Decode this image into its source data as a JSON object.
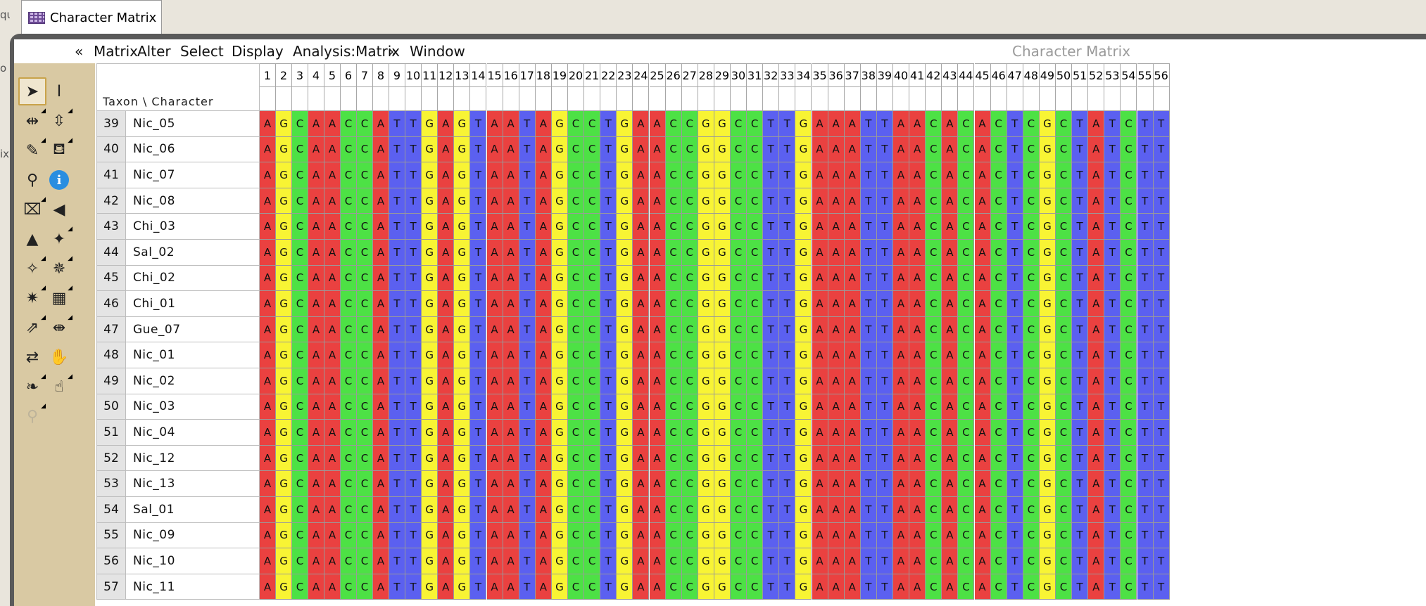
{
  "window": {
    "tab_label": "Character Matrix",
    "left_strip_fragments": [
      "qu",
      "o",
      "ix"
    ]
  },
  "menubar": {
    "items": [
      "«",
      "Matrix",
      "Alter",
      "Select",
      "Display",
      "Analysis:Matrix",
      "»",
      "Window"
    ],
    "right_title": "Character Matrix"
  },
  "tools": [
    {
      "name": "arrow-icon",
      "glyph": "➤",
      "selected": true,
      "menu": false
    },
    {
      "name": "ibeam-icon",
      "glyph": "I",
      "selected": false,
      "menu": false
    },
    {
      "name": "column-expand-icon",
      "glyph": "⇹",
      "selected": false,
      "menu": true
    },
    {
      "name": "row-expand-icon",
      "glyph": "⇳",
      "selected": false,
      "menu": true
    },
    {
      "name": "pencil-icon",
      "glyph": "✎",
      "selected": false,
      "menu": true
    },
    {
      "name": "paint-bucket-icon",
      "glyph": "⛾",
      "selected": false,
      "menu": true
    },
    {
      "name": "eyedropper-icon",
      "glyph": "⚲",
      "selected": false,
      "menu": false
    },
    {
      "name": "info-icon",
      "glyph": "i",
      "selected": false,
      "menu": false
    },
    {
      "name": "key-icon",
      "glyph": "⌧",
      "selected": false,
      "menu": true
    },
    {
      "name": "wedge-icon",
      "glyph": "◀",
      "selected": false,
      "menu": false
    },
    {
      "name": "triangle-icon",
      "glyph": "▲",
      "selected": false,
      "menu": false
    },
    {
      "name": "magic-wand-icon",
      "glyph": "✦",
      "selected": false,
      "menu": true
    },
    {
      "name": "wand-select-icon",
      "glyph": "✧",
      "selected": false,
      "menu": true
    },
    {
      "name": "wand-contiguous-icon",
      "glyph": "✵",
      "selected": false,
      "menu": true
    },
    {
      "name": "star-wand-icon",
      "glyph": "✷",
      "selected": false,
      "menu": true
    },
    {
      "name": "block-move-icon",
      "glyph": "▦",
      "selected": false,
      "menu": true
    },
    {
      "name": "shift-icon",
      "glyph": "⇗",
      "selected": false,
      "menu": true
    },
    {
      "name": "split-icon",
      "glyph": "⇼",
      "selected": false,
      "menu": true
    },
    {
      "name": "color-swap-icon",
      "glyph": "⇄",
      "selected": false,
      "menu": false
    },
    {
      "name": "hand-grab-icon",
      "glyph": "✋",
      "selected": false,
      "menu": false
    },
    {
      "name": "leaf-icon",
      "glyph": "❧",
      "selected": false,
      "menu": true
    },
    {
      "name": "hand-icon",
      "glyph": "☝",
      "selected": false,
      "menu": true
    },
    {
      "name": "zoom-icon",
      "glyph": "⚲",
      "selected": false,
      "menu": true,
      "dim": true
    }
  ],
  "matrix": {
    "corner_label": "Taxon \\ Character",
    "columns": [
      "1",
      "2",
      "3",
      "4",
      "5",
      "6",
      "7",
      "8",
      "9",
      "10",
      "11",
      "12",
      "13",
      "14",
      "15",
      "16",
      "17",
      "18",
      "19",
      "20",
      "21",
      "22",
      "23",
      "24",
      "25",
      "26",
      "27",
      "28",
      "29",
      "30",
      "31",
      "32",
      "33",
      "34",
      "35",
      "36",
      "37",
      "38",
      "39",
      "40",
      "41",
      "42",
      "43",
      "44",
      "45",
      "46",
      "47",
      "48",
      "49",
      "50",
      "51",
      "52",
      "53",
      "54",
      "55",
      "56"
    ],
    "sequence": "AGCAACCATTGAGTAATAGCCTGAACCGGCCTTGAAATTAACACACTCGCTATCTT",
    "rows": [
      {
        "num": "39",
        "name": "Nic_05"
      },
      {
        "num": "40",
        "name": "Nic_06"
      },
      {
        "num": "41",
        "name": "Nic_07"
      },
      {
        "num": "42",
        "name": "Nic_08"
      },
      {
        "num": "43",
        "name": "Chi_03"
      },
      {
        "num": "44",
        "name": "Sal_02"
      },
      {
        "num": "45",
        "name": "Chi_02"
      },
      {
        "num": "46",
        "name": "Chi_01"
      },
      {
        "num": "47",
        "name": "Gue_07"
      },
      {
        "num": "48",
        "name": "Nic_01"
      },
      {
        "num": "49",
        "name": "Nic_02"
      },
      {
        "num": "50",
        "name": "Nic_03"
      },
      {
        "num": "51",
        "name": "Nic_04"
      },
      {
        "num": "52",
        "name": "Nic_12"
      },
      {
        "num": "53",
        "name": "Nic_13"
      },
      {
        "num": "54",
        "name": "Sal_01"
      },
      {
        "num": "55",
        "name": "Nic_09"
      },
      {
        "num": "56",
        "name": "Nic_10"
      },
      {
        "num": "57",
        "name": "Nic_11"
      }
    ],
    "base_colors": {
      "A": "#ea4140",
      "G": "#f8f434",
      "C": "#4de145",
      "T": "#5b60f0"
    }
  }
}
